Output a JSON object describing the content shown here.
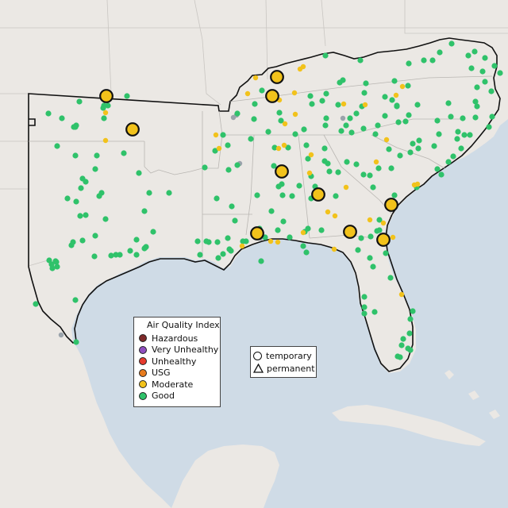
{
  "legend": {
    "title": "Air Quality Index",
    "categories": [
      {
        "label": "Hazardous",
        "color": "#7e2a2a"
      },
      {
        "label": "Very Unhealthy",
        "color": "#8f4fbf"
      },
      {
        "label": "Unhealthy",
        "color": "#e63b2e"
      },
      {
        "label": "USG",
        "color": "#e87c1e"
      },
      {
        "label": "Moderate",
        "color": "#f2c21b"
      },
      {
        "label": "Good",
        "color": "#2fc26a"
      }
    ]
  },
  "monitor_types": {
    "temporary": "temporary",
    "permanent": "permanent"
  },
  "colors": {
    "ocean": "#cfdbe6",
    "land": "#ebe8e4",
    "region": "#ece9e5",
    "good": "#2fc26a",
    "moderate": "#f2c21b",
    "unknown": "#9aa3ab"
  },
  "monitors": {
    "temporary_moderate": [
      [
        134,
        121
      ],
      [
        167,
        163
      ],
      [
        349,
        97
      ],
      [
        343,
        121
      ],
      [
        355,
        216
      ],
      [
        401,
        245
      ],
      [
        493,
        258
      ],
      [
        324,
        294
      ],
      [
        441,
        292
      ],
      [
        483,
        302
      ]
    ],
    "good": [
      [
        61,
        143
      ],
      [
        78,
        149
      ],
      [
        93,
        160
      ],
      [
        96,
        158
      ],
      [
        72,
        184
      ],
      [
        95,
        196
      ],
      [
        122,
        196
      ],
      [
        156,
        193
      ],
      [
        175,
        218
      ],
      [
        188,
        243
      ],
      [
        182,
        266
      ],
      [
        128,
        243
      ],
      [
        104,
        225
      ],
      [
        102,
        237
      ],
      [
        96,
        254
      ],
      [
        108,
        271
      ],
      [
        104,
        303
      ],
      [
        90,
        309
      ],
      [
        120,
        297
      ],
      [
        85,
        250
      ],
      [
        70,
        329
      ],
      [
        72,
        336
      ],
      [
        66,
        338
      ],
      [
        140,
        322
      ],
      [
        146,
        321
      ],
      [
        151,
        321
      ],
      [
        172,
        321
      ],
      [
        164,
        316
      ],
      [
        182,
        313
      ],
      [
        184,
        311
      ],
      [
        119,
        323
      ],
      [
        45,
        383
      ],
      [
        95,
        378
      ],
      [
        96,
        431
      ],
      [
        131,
        133
      ],
      [
        131,
        149
      ],
      [
        160,
        121
      ],
      [
        120,
        213
      ],
      [
        213,
        243
      ],
      [
        249,
        304
      ],
      [
        252,
        321
      ],
      [
        275,
        325
      ],
      [
        263,
        305
      ],
      [
        274,
        305
      ],
      [
        291,
        316
      ],
      [
        281,
        320
      ],
      [
        287,
        300
      ],
      [
        296,
        278
      ],
      [
        273,
        250
      ],
      [
        258,
        211
      ],
      [
        281,
        170
      ],
      [
        271,
        190
      ],
      [
        299,
        143
      ],
      [
        330,
        114
      ],
      [
        320,
        150
      ],
      [
        316,
        175
      ],
      [
        338,
        166
      ],
      [
        354,
        152
      ],
      [
        372,
        169
      ],
      [
        386,
        183
      ],
      [
        363,
        186
      ],
      [
        409,
        187
      ],
      [
        413,
        206
      ],
      [
        415,
        216
      ],
      [
        377,
        234
      ],
      [
        397,
        235
      ],
      [
        392,
        250
      ],
      [
        426,
        217
      ],
      [
        437,
        204
      ],
      [
        458,
        220
      ],
      [
        466,
        221
      ],
      [
        470,
        236
      ],
      [
        477,
        212
      ],
      [
        493,
        212
      ],
      [
        504,
        196
      ],
      [
        517,
        192
      ],
      [
        520,
        181
      ],
      [
        528,
        177
      ],
      [
        511,
        153
      ],
      [
        515,
        145
      ],
      [
        502,
        154
      ],
      [
        476,
        158
      ],
      [
        485,
        146
      ],
      [
        441,
        149
      ],
      [
        430,
        165
      ],
      [
        410,
        158
      ],
      [
        411,
        149
      ],
      [
        393,
        131
      ],
      [
        391,
        121
      ],
      [
        411,
        118
      ],
      [
        428,
        104
      ],
      [
        432,
        101
      ],
      [
        410,
        70
      ],
      [
        454,
        76
      ],
      [
        461,
        105
      ],
      [
        485,
        122
      ],
      [
        494,
        126
      ],
      [
        500,
        133
      ],
      [
        551,
        152
      ],
      [
        565,
        130
      ],
      [
        590,
        70
      ],
      [
        598,
        65
      ],
      [
        611,
        73
      ],
      [
        608,
        90
      ],
      [
        611,
        103
      ],
      [
        619,
        115
      ],
      [
        601,
        134
      ],
      [
        599,
        148
      ],
      [
        583,
        149
      ],
      [
        553,
        169
      ],
      [
        547,
        184
      ],
      [
        527,
        187
      ],
      [
        576,
        175
      ],
      [
        592,
        170
      ],
      [
        577,
        166
      ],
      [
        620,
        147
      ],
      [
        616,
        160
      ],
      [
        551,
        213
      ],
      [
        525,
        236
      ],
      [
        497,
        246
      ],
      [
        478,
        277
      ],
      [
        451,
        315
      ],
      [
        455,
        300
      ],
      [
        467,
        298
      ],
      [
        466,
        325
      ],
      [
        470,
        336
      ],
      [
        486,
        319
      ],
      [
        492,
        350
      ],
      [
        459,
        374
      ],
      [
        459,
        387
      ],
      [
        459,
        395
      ],
      [
        472,
        393
      ],
      [
        520,
        392
      ],
      [
        517,
        402
      ],
      [
        516,
        420
      ],
      [
        508,
        427
      ],
      [
        506,
        435
      ],
      [
        514,
        439
      ],
      [
        501,
        449
      ],
      [
        504,
        450
      ],
      [
        517,
        441
      ],
      [
        384,
        292
      ],
      [
        388,
        288
      ],
      [
        329,
        329
      ],
      [
        386,
        318
      ],
      [
        405,
        290
      ],
      [
        382,
        310
      ],
      [
        334,
        299
      ],
      [
        310,
        304
      ],
      [
        306,
        304
      ],
      [
        350,
        290
      ],
      [
        357,
        279
      ],
      [
        365,
        299
      ],
      [
        324,
        246
      ],
      [
        368,
        247
      ],
      [
        342,
        266
      ],
      [
        351,
        235
      ],
      [
        392,
        222
      ],
      [
        423,
        247
      ],
      [
        475,
        291
      ],
      [
        478,
        290
      ],
      [
        449,
        207
      ],
      [
        443,
        167
      ],
      [
        436,
        158
      ],
      [
        473,
        169
      ],
      [
        490,
        188
      ],
      [
        556,
        220
      ],
      [
        571,
        197
      ],
      [
        581,
        187
      ],
      [
        585,
        170
      ],
      [
        565,
        204
      ],
      [
        568,
        147
      ],
      [
        383,
        163
      ],
      [
        352,
        142
      ],
      [
        346,
        186
      ],
      [
        388,
        200
      ],
      [
        345,
        209
      ],
      [
        351,
        218
      ],
      [
        355,
        232
      ],
      [
        356,
        246
      ],
      [
        406,
        127
      ],
      [
        456,
        134
      ],
      [
        497,
        102
      ],
      [
        515,
        80
      ],
      [
        514,
        108
      ],
      [
        534,
        76
      ],
      [
        545,
        76
      ],
      [
        569,
        55
      ],
      [
        554,
        66
      ],
      [
        594,
        86
      ],
      [
        601,
        110
      ],
      [
        623,
        83
      ],
      [
        630,
        92
      ],
      [
        599,
        128
      ],
      [
        459,
        117
      ],
      [
        426,
        132
      ],
      [
        449,
        143
      ],
      [
        458,
        162
      ],
      [
        500,
        134
      ],
      [
        526,
        132
      ],
      [
        409,
        203
      ],
      [
        287,
        183
      ],
      [
        321,
        131
      ],
      [
        299,
        208
      ],
      [
        288,
        214
      ],
      [
        327,
        288
      ],
      [
        292,
        260
      ],
      [
        260,
        304
      ],
      [
        289,
        314
      ],
      [
        183,
        312
      ],
      [
        172,
        302
      ],
      [
        193,
        292
      ],
      [
        133,
        276
      ],
      [
        108,
        229
      ],
      [
        125,
        247
      ],
      [
        95,
        160
      ],
      [
        136,
        133
      ],
      [
        130,
        136
      ],
      [
        100,
        128
      ],
      [
        62,
        328
      ],
      [
        71,
        330
      ],
      [
        65,
        333
      ],
      [
        92,
        305
      ],
      [
        101,
        272
      ]
    ],
    "moderate": [
      [
        133,
        142
      ],
      [
        133,
        177
      ],
      [
        312,
        118
      ],
      [
        322,
        98
      ],
      [
        378,
        87
      ],
      [
        382,
        84
      ],
      [
        371,
        117
      ],
      [
        372,
        144
      ],
      [
        352,
        126
      ],
      [
        392,
        195
      ],
      [
        351,
        187
      ],
      [
        358,
        183
      ],
      [
        359,
        156
      ],
      [
        433,
        131
      ],
      [
        460,
        132
      ],
      [
        499,
        120
      ],
      [
        507,
        109
      ],
      [
        487,
        176
      ],
      [
        474,
        204
      ],
      [
        436,
        236
      ],
      [
        422,
        272
      ],
      [
        390,
        218
      ],
      [
        421,
        314
      ],
      [
        413,
        267
      ],
      [
        483,
        281
      ],
      [
        506,
        371
      ],
      [
        522,
        233
      ],
      [
        526,
        232
      ],
      [
        495,
        299
      ],
      [
        466,
        277
      ],
      [
        350,
        305
      ],
      [
        341,
        304
      ],
      [
        382,
        293
      ],
      [
        272,
        170
      ],
      [
        276,
        187
      ],
      [
        305,
        310
      ]
    ],
    "unknown": [
      [
        294,
        148
      ],
      [
        298,
        145
      ],
      [
        328,
        300
      ],
      [
        77,
        422
      ],
      [
        432,
        149
      ],
      [
        302,
        206
      ]
    ]
  }
}
